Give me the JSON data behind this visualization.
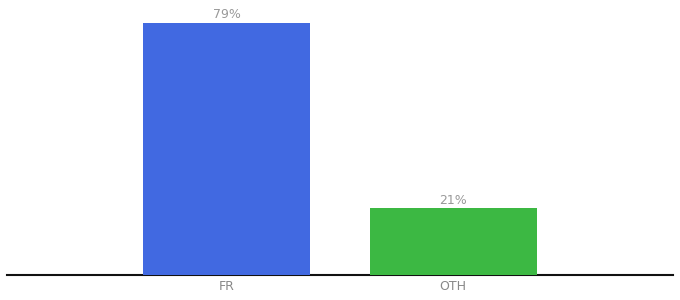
{
  "categories": [
    "FR",
    "OTH"
  ],
  "values": [
    79,
    21
  ],
  "bar_colors": [
    "#4169E1",
    "#3CB843"
  ],
  "labels": [
    "79%",
    "21%"
  ],
  "background_color": "#ffffff",
  "ylim": [
    0,
    83
  ],
  "bar_width": 0.25,
  "label_fontsize": 9,
  "tick_fontsize": 9,
  "spine_color": "#111111",
  "label_color": "#999999",
  "x_positions": [
    0.33,
    0.67
  ]
}
